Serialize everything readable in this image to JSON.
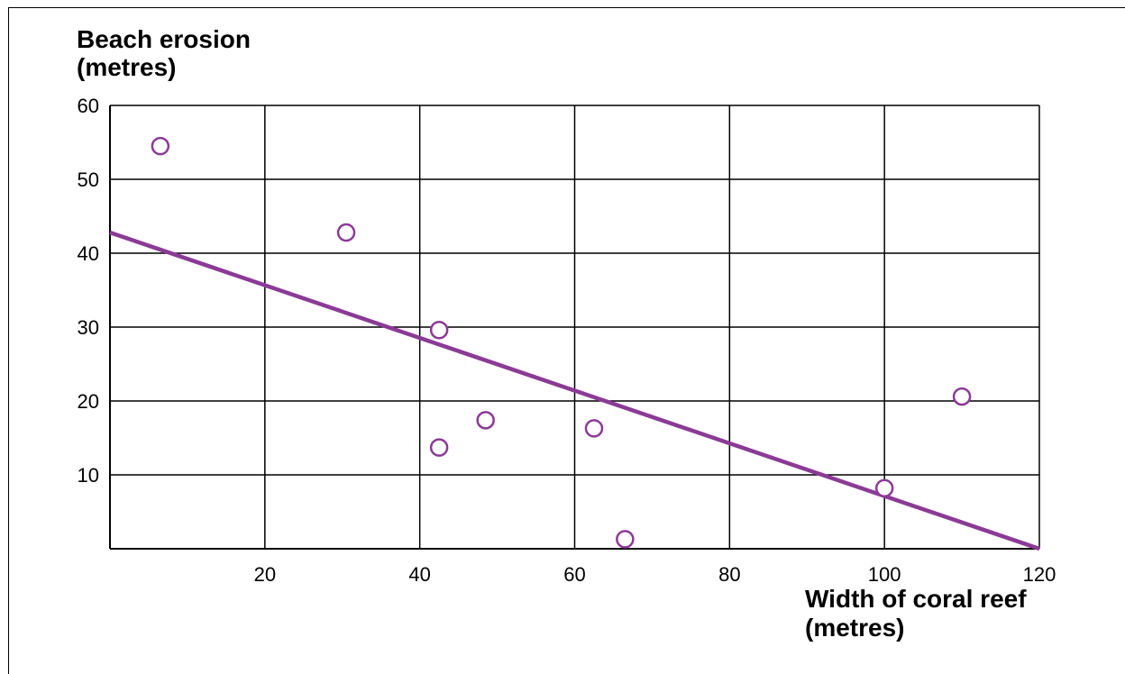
{
  "chart_data": {
    "type": "scatter",
    "ylabel_lines": [
      "Beach erosion",
      "(metres)"
    ],
    "xlabel_lines": [
      "Width of coral reef",
      "(metres)"
    ],
    "xlim": [
      0,
      120
    ],
    "ylim": [
      0,
      60
    ],
    "x_ticks": [
      "20",
      "40",
      "60",
      "80",
      "100",
      "120"
    ],
    "y_ticks": [
      "10",
      "20",
      "30",
      "40",
      "50",
      "60"
    ],
    "grid": true,
    "colors": {
      "series": "#8b3a96",
      "grid": "#000000"
    },
    "points": [
      {
        "x": 6.5,
        "y": 54.5
      },
      {
        "x": 30.5,
        "y": 42.8
      },
      {
        "x": 42.5,
        "y": 29.6
      },
      {
        "x": 42.5,
        "y": 13.7
      },
      {
        "x": 48.5,
        "y": 17.4
      },
      {
        "x": 62.5,
        "y": 16.3
      },
      {
        "x": 66.5,
        "y": 1.3
      },
      {
        "x": 100,
        "y": 8.2
      },
      {
        "x": 110,
        "y": 20.6
      }
    ],
    "trend_line": {
      "x": [
        0,
        120
      ],
      "y": [
        42.8,
        0
      ]
    }
  }
}
